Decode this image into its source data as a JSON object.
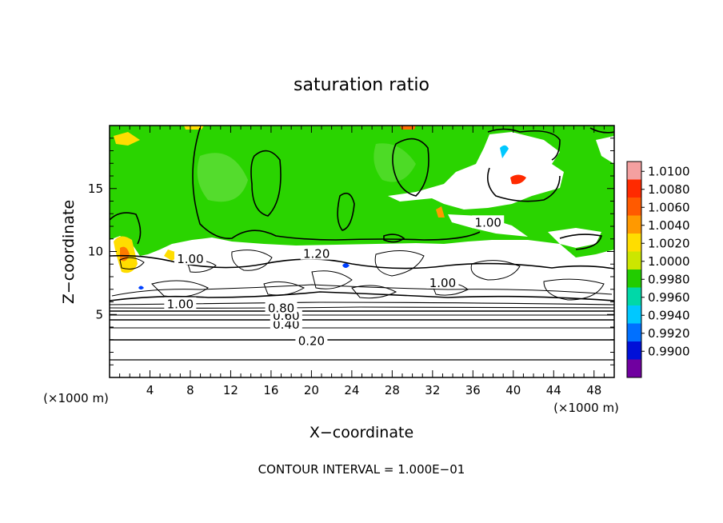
{
  "chart_data": {
    "type": "heatmap",
    "title": "saturation ratio",
    "xlabel": "X−coordinate",
    "ylabel": "Z−coordinate",
    "x_unit_label": "(×1000 m)",
    "z_unit_label": "(×1000 m)",
    "footer": "CONTOUR INTERVAL = 1.000E−01",
    "xlim": [
      0,
      50
    ],
    "zlim": [
      0,
      20
    ],
    "x_ticks": [
      4,
      8,
      12,
      16,
      20,
      24,
      28,
      32,
      36,
      40,
      44,
      48
    ],
    "z_ticks": [
      5,
      10,
      15
    ],
    "colorbar": {
      "labels": [
        "1.0100",
        "1.0080",
        "1.0060",
        "1.0040",
        "1.0020",
        "1.0000",
        "0.9980",
        "0.9960",
        "0.9940",
        "0.9920",
        "0.9900"
      ],
      "colors": [
        "#f4a0a0",
        "#ff2a00",
        "#ff5a00",
        "#ff9900",
        "#ffdd00",
        "#cce600",
        "#22cc00",
        "#00d8a8",
        "#00c8ff",
        "#0070ff",
        "#0010d8",
        "#7000a0"
      ]
    },
    "contour_labels": [
      {
        "text": "0.20",
        "x": 20.0,
        "z": 2.9
      },
      {
        "text": "0.40",
        "x": 17.5,
        "z": 4.2
      },
      {
        "text": "0.60",
        "x": 17.5,
        "z": 4.9
      },
      {
        "text": "0.80",
        "x": 17.0,
        "z": 5.5
      },
      {
        "text": "1.00",
        "x": 7.0,
        "z": 5.8
      },
      {
        "text": "1.00",
        "x": 8.0,
        "z": 9.4
      },
      {
        "text": "1.20",
        "x": 20.5,
        "z": 9.8
      },
      {
        "text": "1.00",
        "x": 33.0,
        "z": 7.5
      },
      {
        "text": "1.00",
        "x": 37.5,
        "z": 12.3
      }
    ]
  }
}
